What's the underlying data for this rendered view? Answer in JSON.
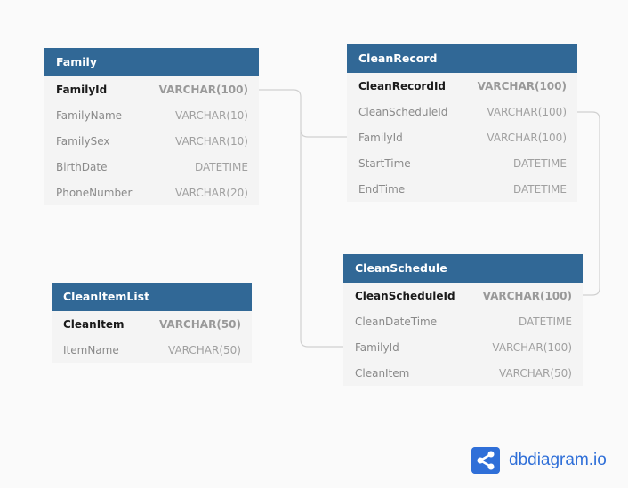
{
  "tables": [
    {
      "name": "Family",
      "rows": [
        {
          "field": "FamilyId",
          "type": "VARCHAR(100)",
          "pk": true
        },
        {
          "field": "FamilyName",
          "type": "VARCHAR(10)"
        },
        {
          "field": "FamilySex",
          "type": "VARCHAR(10)"
        },
        {
          "field": "BirthDate",
          "type": "DATETIME"
        },
        {
          "field": "PhoneNumber",
          "type": "VARCHAR(20)"
        }
      ]
    },
    {
      "name": "CleanRecord",
      "rows": [
        {
          "field": "CleanRecordId",
          "type": "VARCHAR(100)",
          "pk": true
        },
        {
          "field": "CleanScheduleId",
          "type": "VARCHAR(100)"
        },
        {
          "field": "FamilyId",
          "type": "VARCHAR(100)"
        },
        {
          "field": "StartTime",
          "type": "DATETIME"
        },
        {
          "field": "EndTime",
          "type": "DATETIME"
        }
      ]
    },
    {
      "name": "CleanSchedule",
      "rows": [
        {
          "field": "CleanScheduleId",
          "type": "VARCHAR(100)",
          "pk": true
        },
        {
          "field": "CleanDateTime",
          "type": "DATETIME"
        },
        {
          "field": "FamilyId",
          "type": "VARCHAR(100)"
        },
        {
          "field": "CleanItem",
          "type": "VARCHAR(50)"
        }
      ]
    },
    {
      "name": "CleanItemList",
      "rows": [
        {
          "field": "CleanItem",
          "type": "VARCHAR(50)",
          "pk": true
        },
        {
          "field": "ItemName",
          "type": "VARCHAR(50)"
        }
      ]
    }
  ],
  "logo": {
    "text": "dbdiagram.io",
    "icon": "share-icon",
    "color": "#2f6fd8"
  },
  "colors": {
    "header": "#316896",
    "link": "#d0d0d0"
  }
}
